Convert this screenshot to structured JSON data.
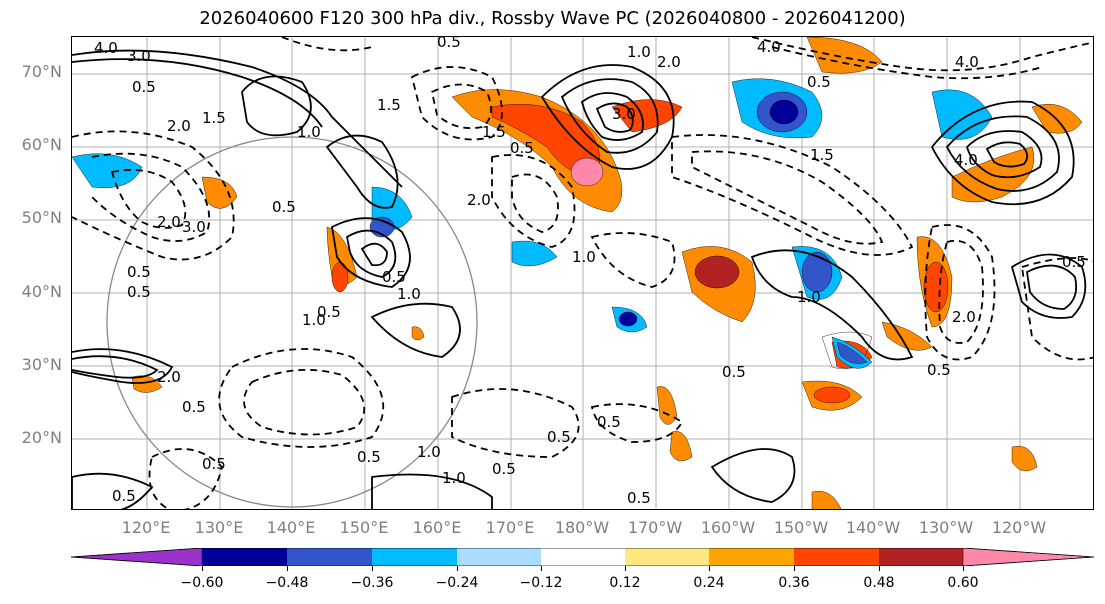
{
  "title": "2026040600 F120 300 hPa div., Rossby Wave PC (2026040800 - 2026041200)",
  "lat_labels": [
    "70°N",
    "60°N",
    "50°N",
    "40°N",
    "30°N",
    "20°N"
  ],
  "lon_labels": [
    "120°E",
    "130°E",
    "140°E",
    "150°E",
    "160°E",
    "170°E",
    "180°W",
    "170°W",
    "160°W",
    "150°W",
    "140°W",
    "130°W",
    "120°W"
  ],
  "colorbar": {
    "colors": [
      "#9933cc",
      "#000099",
      "#3355cc",
      "#00bbff",
      "#aaddff",
      "#ffffff",
      "#ffe680",
      "#ffa500",
      "#ff4500",
      "#b22222",
      "#ff88aa"
    ],
    "ticks": [
      "−0.60",
      "−0.48",
      "−0.36",
      "−0.24",
      "−0.12",
      "0.12",
      "0.24",
      "0.36",
      "0.48",
      "0.60"
    ]
  },
  "contour_labels": [
    "4.0",
    "3.0",
    "0.5",
    "2.0",
    "1.5",
    "1.0",
    "0.5",
    "1.0",
    "1.5",
    "2.0",
    "3.0",
    "3.0",
    "4.0",
    "0.5",
    "1.5",
    "1.0",
    "0.5",
    "2.0",
    "0.5",
    "0.5",
    "0.5",
    "1.0",
    "1.0",
    "0.5",
    "0.5",
    "1.0",
    "0.5",
    "2.0",
    "0.5",
    "4.0",
    "0.5",
    "0.5",
    "0.5",
    "1.0",
    "0.5",
    "0.5",
    "0.5",
    "0.5",
    "4.0",
    "2.0",
    "0.5",
    "1.0",
    "1.5",
    "2.0",
    "0.5"
  ]
}
